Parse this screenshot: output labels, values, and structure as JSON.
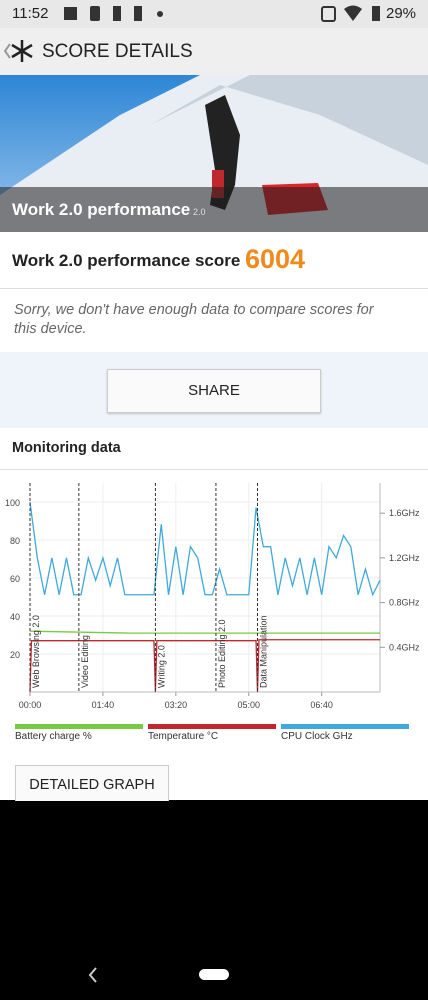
{
  "status_bar": {
    "time": "11:52",
    "battery": "29%"
  },
  "header": {
    "title": "SCORE DETAILS"
  },
  "hero": {
    "label": "Work 2.0 performance",
    "version": "2.0"
  },
  "score": {
    "label": "Work 2.0 performance score",
    "value": "6004"
  },
  "message": "Sorry, we don't have enough data to compare scores for this device.",
  "share_button": "SHARE",
  "monitoring": {
    "title": "Monitoring data",
    "chart_data": {
      "type": "line",
      "xlim": [
        0,
        480
      ],
      "xticks": [
        {
          "value": 0,
          "label": "00:00"
        },
        {
          "value": 100,
          "label": "01:40"
        },
        {
          "value": 200,
          "label": "03:20"
        },
        {
          "value": 300,
          "label": "05:00"
        },
        {
          "value": 400,
          "label": "06:40"
        }
      ],
      "ylim": [
        0,
        110
      ],
      "yticks": [
        20,
        40,
        60,
        80,
        100
      ],
      "y2lim": [
        0,
        1.87
      ],
      "y2ticks": [
        {
          "value": 0.4,
          "label": "0.4GHz"
        },
        {
          "value": 0.8,
          "label": "0.8GHz"
        },
        {
          "value": 1.2,
          "label": "1.2GHz"
        },
        {
          "value": 1.6,
          "label": "1.6GHz"
        }
      ],
      "grid": true,
      "markers": [
        {
          "label": "Web Browsing 2.0",
          "x": 0
        },
        {
          "label": "Video Editing",
          "x": 67
        },
        {
          "label": "Writing 2.0",
          "x": 172
        },
        {
          "label": "Photo Editing 2.0",
          "x": 255
        },
        {
          "label": "Data Manipulation",
          "x": 312
        }
      ],
      "series": [
        {
          "name": "Battery charge %",
          "color": "#7ac943",
          "x": [
            0,
            137,
            480
          ],
          "values": [
            32,
            31,
            31
          ]
        },
        {
          "name": "Temperature °C",
          "color": "#c1272d",
          "x": [
            0,
            2,
            170,
            172,
            174,
            310,
            312,
            314,
            480
          ],
          "values": [
            0,
            27,
            27,
            0,
            27,
            27,
            0,
            27.5,
            27.5
          ]
        },
        {
          "name": "CPU Clock GHz",
          "color": "#3fa9db",
          "axis": "y2",
          "x": [
            0,
            10,
            20,
            30,
            40,
            50,
            60,
            70,
            80,
            90,
            100,
            110,
            120,
            130,
            140,
            150,
            160,
            170,
            180,
            190,
            200,
            210,
            220,
            230,
            240,
            250,
            260,
            270,
            280,
            290,
            300,
            310,
            320,
            330,
            340,
            350,
            360,
            370,
            380,
            390,
            400,
            410,
            420,
            430,
            440,
            450,
            460,
            470,
            480
          ],
          "values": [
            1.7,
            1.2,
            0.87,
            1.2,
            0.87,
            1.2,
            0.87,
            0.87,
            1.2,
            1.0,
            1.2,
            0.95,
            1.2,
            0.87,
            0.87,
            0.87,
            0.87,
            0.87,
            1.5,
            0.87,
            1.3,
            0.87,
            1.3,
            1.2,
            0.87,
            0.87,
            1.1,
            0.87,
            0.87,
            0.87,
            0.87,
            1.65,
            1.3,
            1.3,
            0.87,
            1.2,
            0.95,
            1.2,
            0.87,
            1.2,
            0.87,
            1.3,
            1.2,
            1.4,
            1.3,
            0.87,
            1.1,
            0.87,
            1.0
          ]
        }
      ]
    }
  },
  "detailed_graph_button": "DETAILED GRAPH"
}
